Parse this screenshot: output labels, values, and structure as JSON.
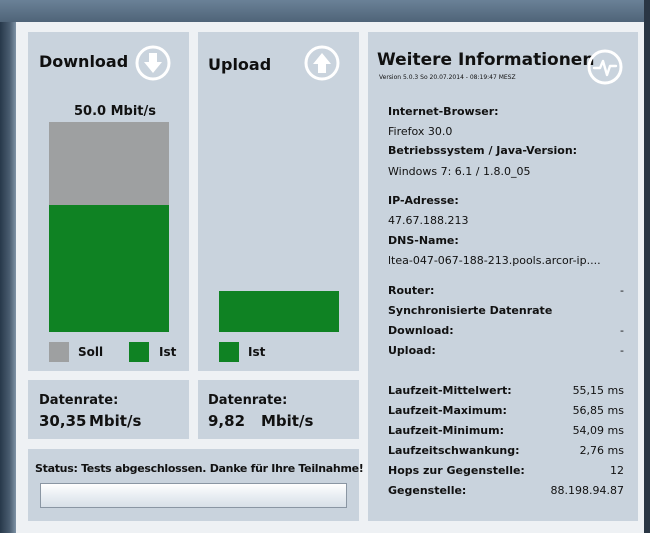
{
  "colors": {
    "panel_bg": "#c9d3dd",
    "soll_gray": "#9ea0a1",
    "ist_green": "#0f8223",
    "icon_stroke": "#ffffff"
  },
  "download": {
    "title": "Download",
    "icon": "arrow-down-circle-icon",
    "speed_label": "50.0 Mbit/s",
    "soll_fraction": 1.0,
    "ist_fraction": 0.6068,
    "legend_soll": "Soll",
    "legend_ist": "Ist",
    "rate_label": "Datenrate:",
    "rate_value": "30,35",
    "rate_unit": "Mbit/s"
  },
  "upload": {
    "title": "Upload",
    "icon": "arrow-up-circle-icon",
    "ist_fraction": 0.1964,
    "legend_ist": "Ist",
    "rate_label": "Datenrate:",
    "rate_value": "9,82",
    "rate_unit": "Mbit/s"
  },
  "status": {
    "text": "Status: Tests abgeschlossen. Danke für Ihre Teilnahme!"
  },
  "info": {
    "title": "Weitere Informationen",
    "subtitle": "Version 5.0.3    So 20.07.2014 - 08:19:47 MESZ",
    "icon": "pulse-circle-icon",
    "browser_label": "Internet-Browser:",
    "browser_value": "Firefox 30.0",
    "os_label": "Betriebssystem / Java-Version:",
    "os_value": "Windows 7: 6.1 / 1.8.0_05",
    "ip_label": "IP-Adresse:",
    "ip_value": "47.67.188.213",
    "dns_label": "DNS-Name:",
    "dns_value": "ltea-047-067-188-213.pools.arcor-ip....",
    "router_label": "Router:",
    "router_value": "-",
    "sync_label": "Synchronisierte Datenrate",
    "sync_download_label": "Download:",
    "sync_download_value": "-",
    "sync_upload_label": "Upload:",
    "sync_upload_value": "-",
    "metrics": [
      {
        "label": "Laufzeit-Mittelwert:",
        "value": "55,15 ms"
      },
      {
        "label": "Laufzeit-Maximum:",
        "value": "56,85 ms"
      },
      {
        "label": "Laufzeit-Minimum:",
        "value": "54,09 ms"
      },
      {
        "label": "Laufzeitschwankung:",
        "value": "2,76 ms"
      },
      {
        "label": "Hops zur Gegenstelle:",
        "value": "12"
      },
      {
        "label": "Gegenstelle:",
        "value": "88.198.94.87"
      }
    ]
  }
}
